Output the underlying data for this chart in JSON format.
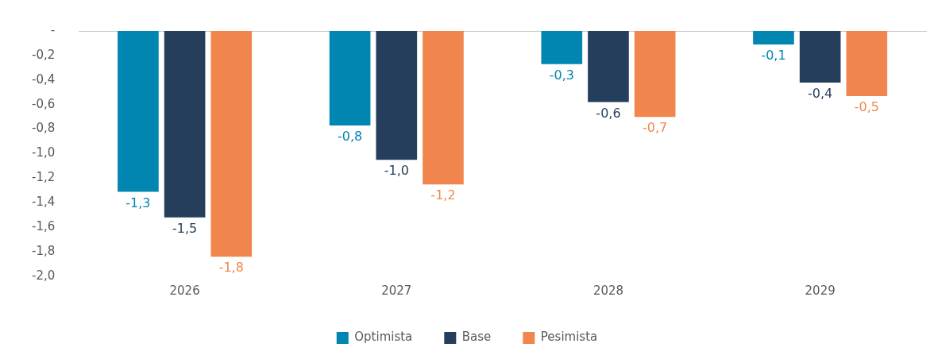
{
  "chart_data": {
    "type": "bar",
    "categories": [
      "2026",
      "2027",
      "2028",
      "2029"
    ],
    "series": [
      {
        "name": "Optimista",
        "color": "#0086b0",
        "values": [
          -1.31,
          -0.77,
          -0.27,
          -0.11
        ],
        "value_labels": [
          "-1,3",
          "-0,8",
          "-0,3",
          "-0,1"
        ]
      },
      {
        "name": "Base",
        "color": "#243e5c",
        "values": [
          -1.52,
          -1.05,
          -0.58,
          -0.42
        ],
        "value_labels": [
          "-1,5",
          "-1,0",
          "-0,6",
          "-0,4"
        ]
      },
      {
        "name": "Pesimista",
        "color": "#f0864d",
        "values": [
          -1.84,
          -1.25,
          -0.7,
          -0.53
        ],
        "value_labels": [
          "-1,8",
          "-1,2",
          "-0,7",
          "-0,5"
        ]
      }
    ],
    "ylim": [
      -2,
      0
    ],
    "yticks": [
      {
        "value": 0,
        "label": "-"
      },
      {
        "value": -0.2,
        "label": "-0,2"
      },
      {
        "value": -0.4,
        "label": "-0,4"
      },
      {
        "value": -0.6,
        "label": "-0,6"
      },
      {
        "value": -0.8,
        "label": "-0,8"
      },
      {
        "value": -1,
        "label": "-1,0"
      },
      {
        "value": -1.2,
        "label": "-1,2"
      },
      {
        "value": -1.4,
        "label": "-1,4"
      },
      {
        "value": -1.6,
        "label": "-1,6"
      },
      {
        "value": -1.8,
        "label": "-1,8"
      },
      {
        "value": -2,
        "label": "-2,0"
      }
    ],
    "grid": false,
    "legend": "bottom"
  }
}
